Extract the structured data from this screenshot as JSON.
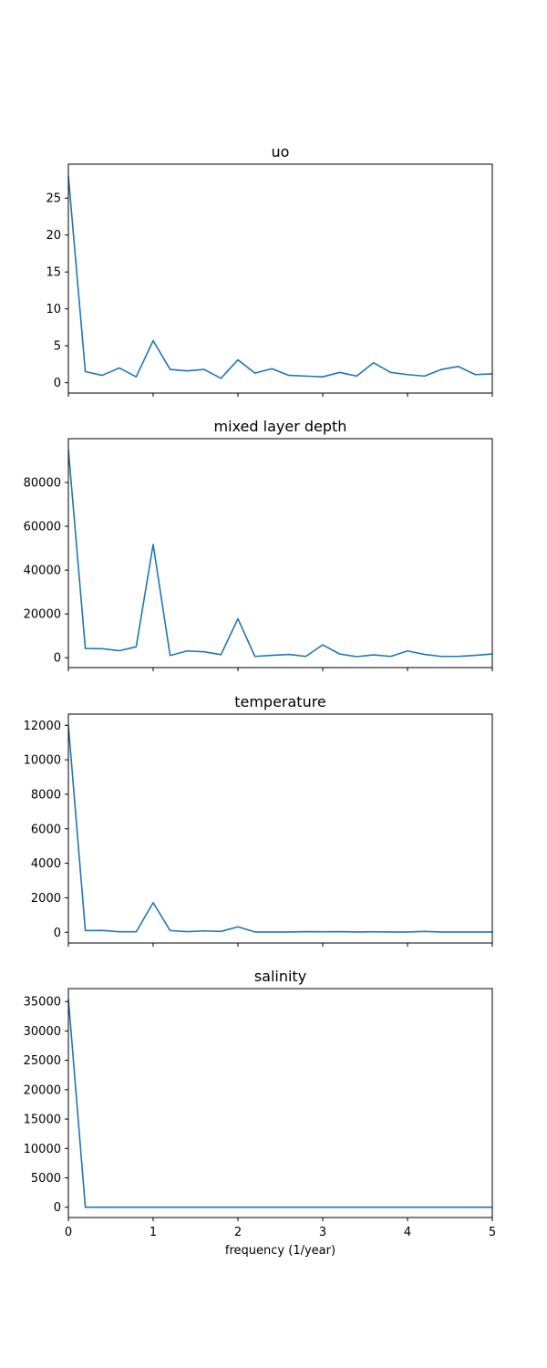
{
  "figure": {
    "x_axis_label": "frequency (1/year)"
  },
  "colors": {
    "line": "#1f77b4",
    "axes": "#000000",
    "background": "#ffffff"
  },
  "chart_data": [
    {
      "type": "line",
      "title": "uo",
      "xlabel": "",
      "ylabel": "",
      "xlim": [
        0,
        5
      ],
      "ylim": [
        -1.4,
        29.6
      ],
      "xticks": [
        0,
        1,
        2,
        3,
        4,
        5
      ],
      "yticks": [
        0,
        5,
        10,
        15,
        20,
        25
      ],
      "show_x_tick_labels": false,
      "grid": false,
      "x": [
        0,
        0.2,
        0.4,
        0.6,
        0.8,
        1.0,
        1.2,
        1.4,
        1.6,
        1.8,
        2.0,
        2.2,
        2.4,
        2.6,
        2.8,
        3.0,
        3.2,
        3.4,
        3.6,
        3.8,
        4.0,
        4.2,
        4.4,
        4.6,
        4.8,
        5.0
      ],
      "series": [
        {
          "values": [
            28.0,
            1.5,
            1.0,
            2.0,
            0.8,
            5.7,
            1.8,
            1.6,
            1.8,
            0.6,
            3.1,
            1.3,
            1.9,
            1.0,
            0.9,
            0.8,
            1.4,
            0.9,
            2.7,
            1.4,
            1.1,
            0.9,
            1.8,
            2.2,
            1.1,
            1.2
          ]
        }
      ]
    },
    {
      "type": "line",
      "title": "mixed layer depth",
      "xlabel": "",
      "ylabel": "",
      "xlim": [
        0,
        5
      ],
      "ylim": [
        -4500,
        100000
      ],
      "xticks": [
        0,
        1,
        2,
        3,
        4,
        5
      ],
      "yticks": [
        0,
        20000,
        40000,
        60000,
        80000
      ],
      "show_x_tick_labels": false,
      "grid": false,
      "x": [
        0,
        0.2,
        0.4,
        0.6,
        0.8,
        1.0,
        1.2,
        1.4,
        1.6,
        1.8,
        2.0,
        2.2,
        2.4,
        2.6,
        2.8,
        3.0,
        3.2,
        3.4,
        3.6,
        3.8,
        4.0,
        4.2,
        4.4,
        4.6,
        4.8,
        5.0
      ],
      "series": [
        {
          "values": [
            95000,
            4200,
            4100,
            3200,
            5000,
            51700,
            1000,
            3100,
            2700,
            1400,
            17800,
            600,
            1100,
            1500,
            600,
            5900,
            1700,
            500,
            1300,
            600,
            3100,
            1500,
            600,
            600,
            1100,
            1700
          ]
        }
      ]
    },
    {
      "type": "line",
      "title": "temperature",
      "xlabel": "",
      "ylabel": "",
      "xlim": [
        0,
        5
      ],
      "ylim": [
        -620,
        12650
      ],
      "xticks": [
        0,
        1,
        2,
        3,
        4,
        5
      ],
      "yticks": [
        0,
        2000,
        4000,
        6000,
        8000,
        10000,
        12000
      ],
      "show_x_tick_labels": false,
      "grid": false,
      "x": [
        0,
        0.2,
        0.4,
        0.6,
        0.8,
        1.0,
        1.2,
        1.4,
        1.6,
        1.8,
        2.0,
        2.2,
        2.4,
        2.6,
        2.8,
        3.0,
        3.2,
        3.4,
        3.6,
        3.8,
        4.0,
        4.2,
        4.4,
        4.6,
        4.8,
        5.0
      ],
      "series": [
        {
          "values": [
            12000,
            100,
            110,
            30,
            30,
            1720,
            100,
            40,
            80,
            50,
            320,
            20,
            20,
            20,
            40,
            30,
            40,
            20,
            30,
            20,
            20,
            50,
            20,
            20,
            20,
            20
          ]
        }
      ]
    },
    {
      "type": "line",
      "title": "salinity",
      "xlabel": "frequency (1/year)",
      "ylabel": "",
      "xlim": [
        0,
        5
      ],
      "ylim": [
        -1750,
        37200
      ],
      "xticks": [
        0,
        1,
        2,
        3,
        4,
        5
      ],
      "yticks": [
        0,
        5000,
        10000,
        15000,
        20000,
        25000,
        30000,
        35000
      ],
      "show_x_tick_labels": true,
      "grid": false,
      "x": [
        0,
        0.2,
        0.4,
        0.6,
        0.8,
        1.0,
        1.2,
        1.4,
        1.6,
        1.8,
        2.0,
        2.2,
        2.4,
        2.6,
        2.8,
        3.0,
        3.2,
        3.4,
        3.6,
        3.8,
        4.0,
        4.2,
        4.4,
        4.6,
        4.8,
        5.0
      ],
      "series": [
        {
          "values": [
            35500,
            5,
            3,
            2,
            2,
            3,
            2,
            2,
            2,
            2,
            2,
            2,
            2,
            2,
            2,
            2,
            2,
            2,
            2,
            2,
            2,
            2,
            2,
            2,
            2,
            2
          ]
        }
      ]
    }
  ]
}
